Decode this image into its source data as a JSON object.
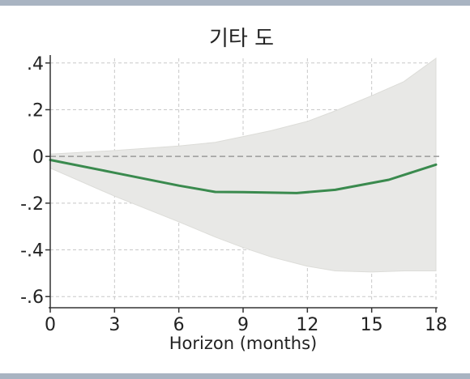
{
  "chart_data": {
    "type": "line",
    "title": "기타 도",
    "xlabel": "Horizon (months)",
    "ylabel": "",
    "xlim": [
      0,
      18
    ],
    "ylim": [
      -0.62,
      0.42
    ],
    "xticks": [
      0,
      3,
      6,
      9,
      12,
      15,
      18
    ],
    "xtick_labels": [
      "0",
      "3",
      "6",
      "9",
      "12",
      "15",
      "18"
    ],
    "yticks": [
      0.4,
      0.2,
      0,
      -0.2,
      -0.4,
      -0.6
    ],
    "ytick_labels": [
      ".4",
      ".2",
      "0",
      "-.2",
      "-.4",
      "-.6"
    ],
    "grid": true,
    "zero_line": true,
    "series": [
      {
        "kind": "line",
        "color": "#3a8a4e",
        "x": [
          0,
          3,
          6,
          7.7,
          9,
          11.5,
          13.3,
          15.8,
          18
        ],
        "y": [
          -0.015,
          -0.07,
          -0.125,
          -0.152,
          -0.153,
          -0.157,
          -0.143,
          -0.1,
          -0.035
        ]
      },
      {
        "kind": "band",
        "color": "#e8e8e6",
        "x": [
          0,
          3,
          6,
          7.7,
          9,
          10.3,
          12,
          13.3,
          15,
          16.5,
          18
        ],
        "upper": [
          0.01,
          0.025,
          0.045,
          0.06,
          0.085,
          0.11,
          0.15,
          0.195,
          0.26,
          0.32,
          0.42
        ],
        "lower": [
          -0.05,
          -0.17,
          -0.28,
          -0.345,
          -0.39,
          -0.43,
          -0.47,
          -0.49,
          -0.495,
          -0.49,
          -0.49
        ]
      }
    ]
  }
}
